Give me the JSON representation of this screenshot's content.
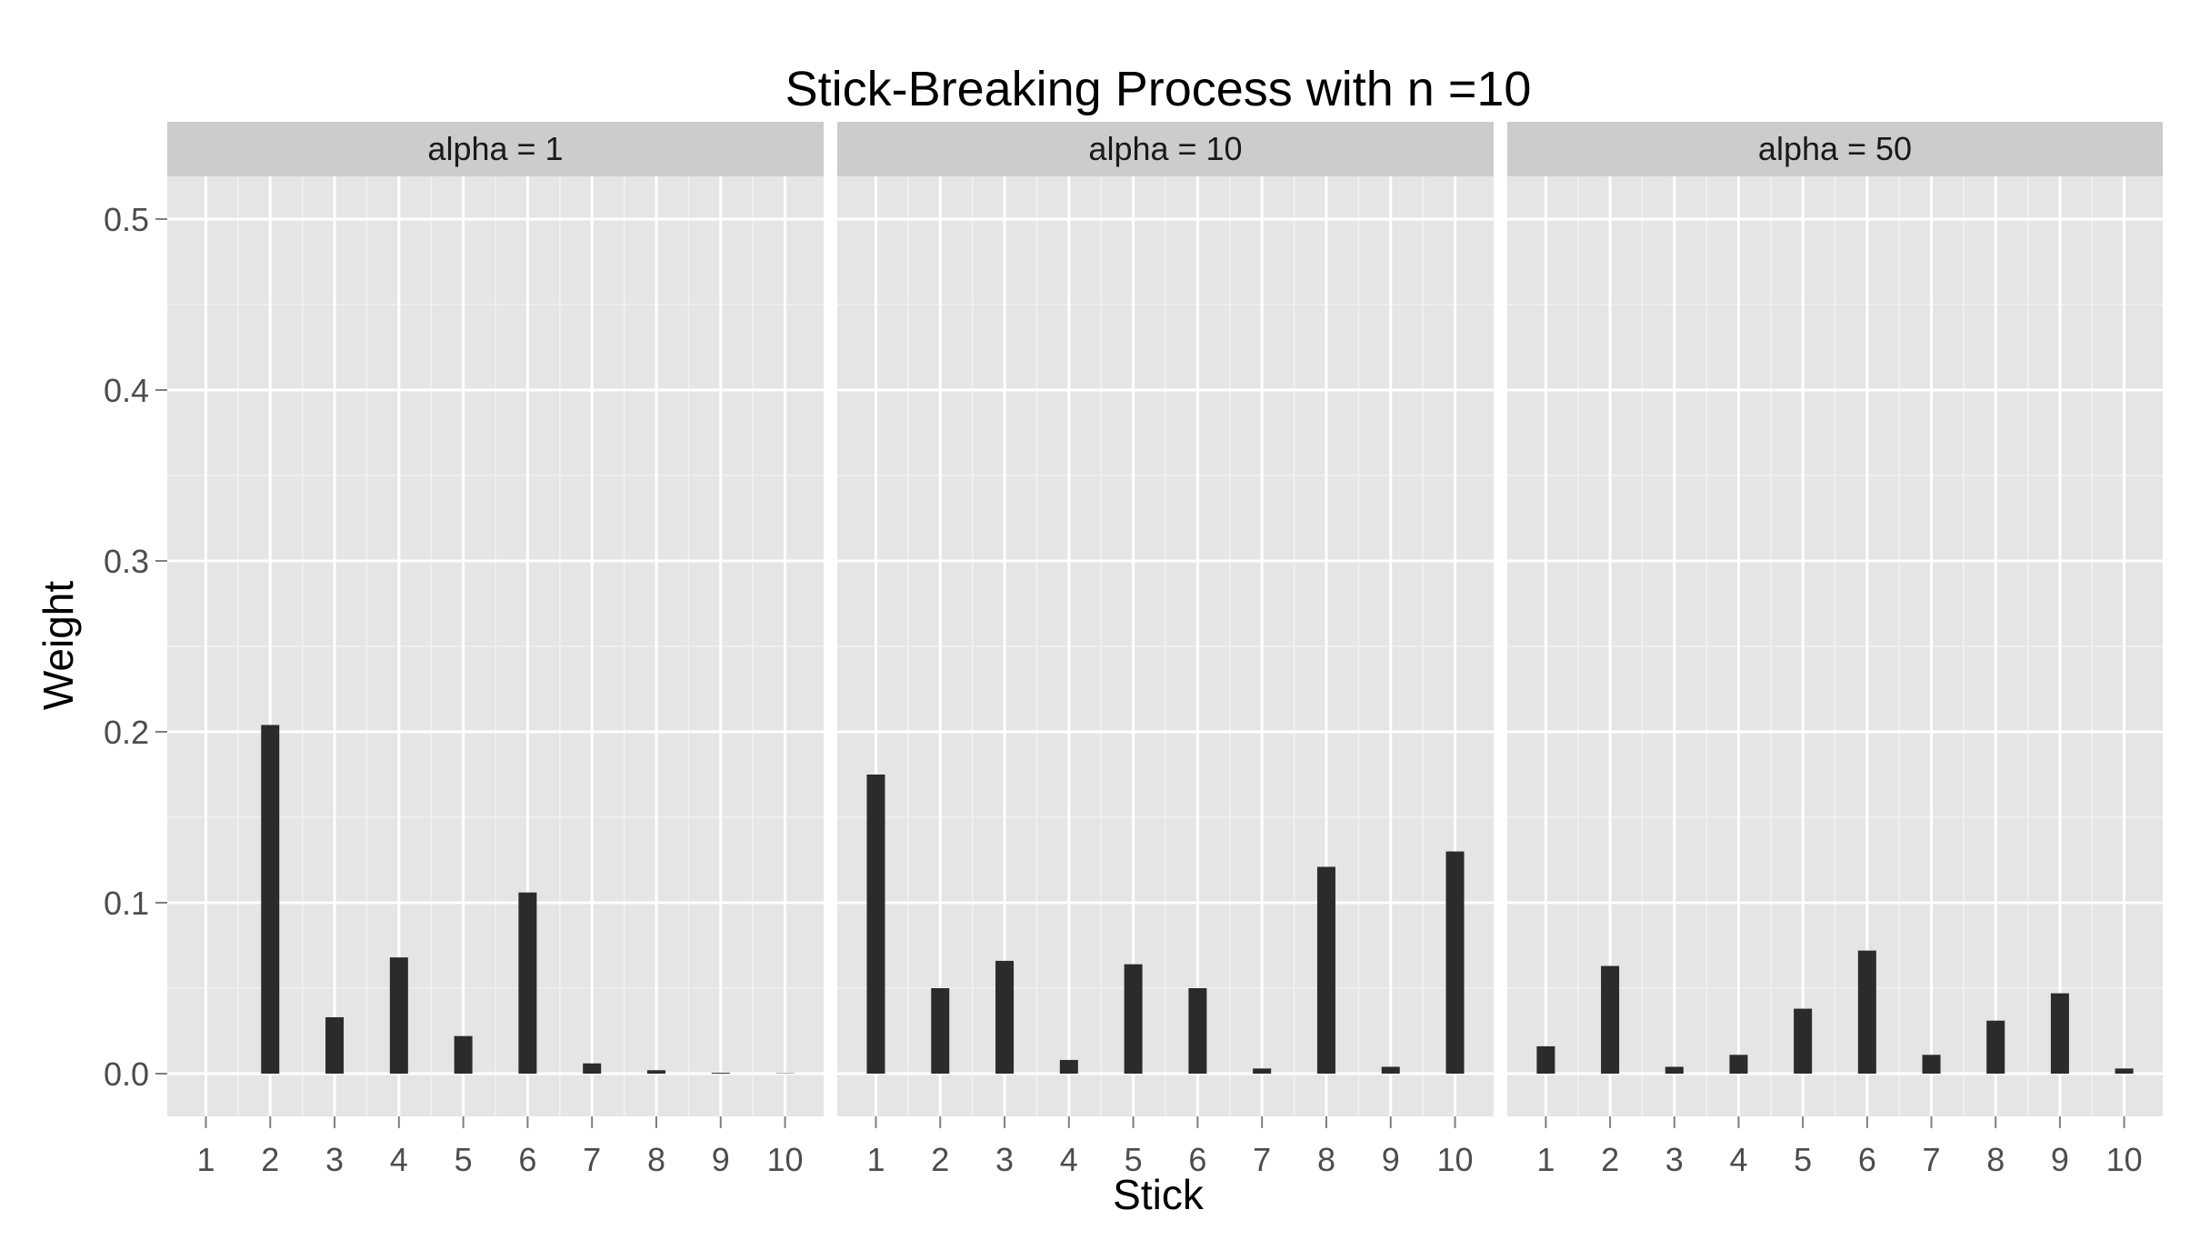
{
  "chart_data": {
    "type": "bar",
    "title": "Stick-Breaking Process with n =10",
    "xlabel": "Stick",
    "ylabel": "Weight",
    "ylim": [
      -0.025,
      0.525
    ],
    "yticks": [
      0.0,
      0.1,
      0.2,
      0.3,
      0.4,
      0.5
    ],
    "ytick_labels": [
      "0.0",
      "0.1",
      "0.2",
      "0.3",
      "0.4",
      "0.5"
    ],
    "categories": [
      "1",
      "2",
      "3",
      "4",
      "5",
      "6",
      "7",
      "8",
      "9",
      "10"
    ],
    "grid": true,
    "colors": {
      "panel_background": "#e5e5e5",
      "grid_major": "#ffffff",
      "grid_minor": "#f2f2f2",
      "strip_background": "#cccccc",
      "bar": "#2b2b2b",
      "tick": "#7f7f7f"
    },
    "panels": [
      {
        "label": "alpha = 1",
        "values": [
          0.0,
          0.204,
          0.033,
          0.068,
          0.022,
          0.106,
          0.006,
          0.002,
          0.0005,
          0.0002
        ]
      },
      {
        "label": "alpha = 10",
        "values": [
          0.175,
          0.05,
          0.066,
          0.008,
          0.064,
          0.05,
          0.003,
          0.121,
          0.004,
          0.13
        ]
      },
      {
        "label": "alpha = 50",
        "values": [
          0.016,
          0.063,
          0.004,
          0.011,
          0.038,
          0.072,
          0.011,
          0.031,
          0.047,
          0.003
        ]
      }
    ]
  }
}
